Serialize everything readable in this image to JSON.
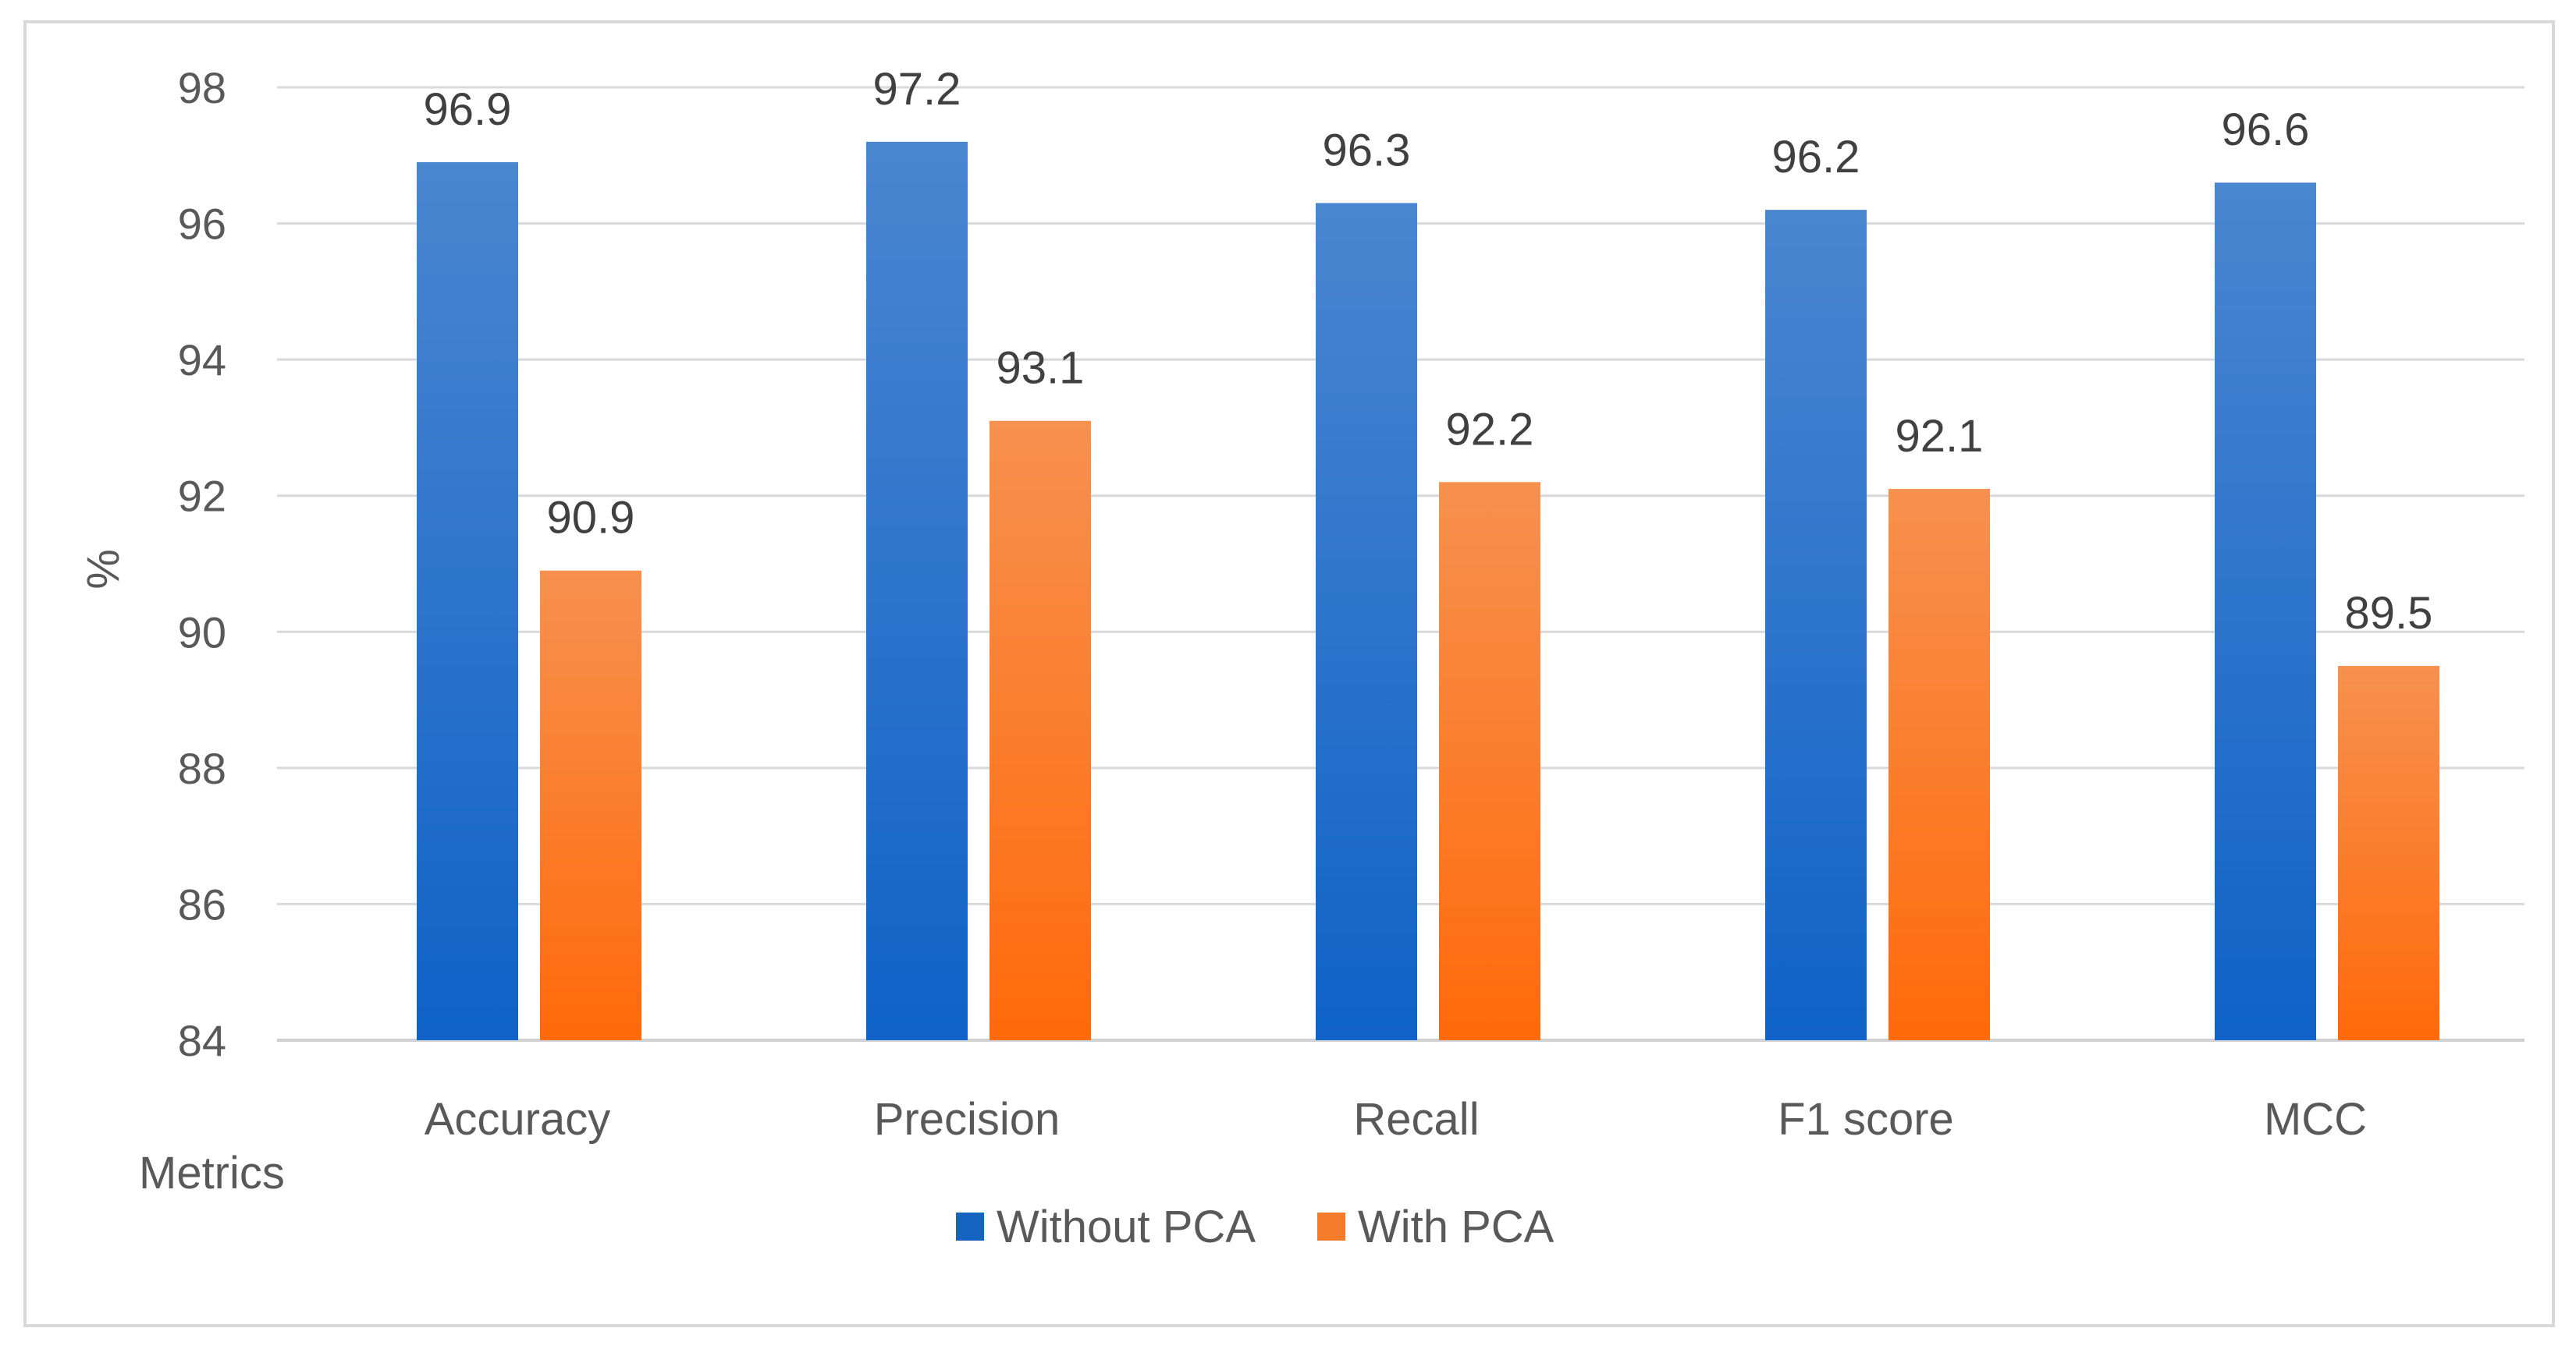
{
  "chart_data": {
    "type": "bar",
    "title": "",
    "xlabel": "Metrics",
    "ylabel": "%",
    "ylim": [
      84,
      98
    ],
    "yticks": [
      84,
      86,
      88,
      90,
      92,
      94,
      96,
      98
    ],
    "grid": true,
    "legend_position": "bottom",
    "categories": [
      "Accuracy",
      "Precision",
      "Recall",
      "F1 score",
      "MCC"
    ],
    "series": [
      {
        "name": "Without PCA",
        "values": [
          96.9,
          97.2,
          96.3,
          96.2,
          96.6
        ],
        "color_top": "#4a86d0",
        "color_bottom": "#0f62c7",
        "legend_color": "#1565c0"
      },
      {
        "name": "With PCA",
        "values": [
          90.9,
          93.1,
          92.2,
          92.1,
          89.5
        ],
        "color_top": "#f7914f",
        "color_bottom": "#ff6a0a",
        "legend_color": "#f47b2a"
      }
    ]
  }
}
